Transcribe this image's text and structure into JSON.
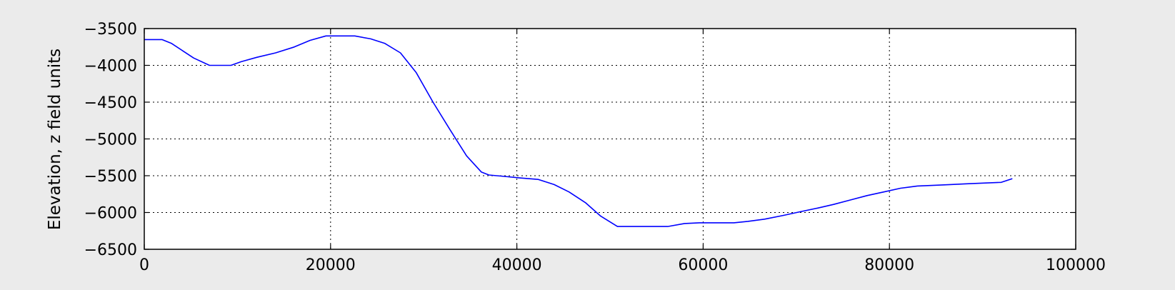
{
  "chart_data": {
    "type": "line",
    "title": "",
    "xlabel": "",
    "ylabel": "Elevation, z field units",
    "xlim": [
      0,
      100000
    ],
    "ylim": [
      -6500,
      -3500
    ],
    "xticks": [
      0,
      20000,
      40000,
      60000,
      80000,
      100000
    ],
    "xtick_labels": [
      "0",
      "20000",
      "40000",
      "60000",
      "80000",
      "100000"
    ],
    "yticks": [
      -3500,
      -4000,
      -4500,
      -5000,
      -5500,
      -6000,
      -6500
    ],
    "ytick_labels": [
      "−3500",
      "−4000",
      "−4500",
      "−5000",
      "−5500",
      "−6000",
      "−6500"
    ],
    "grid": true,
    "grid_style": "dotted",
    "legend": "none",
    "line_color": "#0000ff",
    "background": "#ebebeb",
    "series": [
      {
        "x": [
          0,
          1900,
          2900,
          4100,
          5300,
          7000,
          8100,
          9300,
          10400,
          12100,
          14100,
          16100,
          17800,
          19500,
          21000,
          22600,
          24300,
          25800,
          27500,
          29200,
          31000,
          32800,
          34600,
          36200,
          37000,
          38700,
          40300,
          42300,
          44000,
          45600,
          47400,
          49000,
          50800,
          52500,
          54200,
          56200,
          58000,
          59600,
          61400,
          63300,
          64800,
          66600,
          68600,
          70400,
          72300,
          74000,
          75800,
          77600,
          79400,
          81200,
          83000,
          84800,
          86500,
          88300,
          90100,
          92000,
          93200
        ],
        "y": [
          -3650,
          -3650,
          -3700,
          -3800,
          -3900,
          -4000,
          -4000,
          -4000,
          -3950,
          -3890,
          -3830,
          -3750,
          -3660,
          -3600,
          -3600,
          -3600,
          -3640,
          -3700,
          -3830,
          -4100,
          -4500,
          -4870,
          -5230,
          -5450,
          -5490,
          -5510,
          -5530,
          -5550,
          -5620,
          -5720,
          -5870,
          -6050,
          -6190,
          -6190,
          -6190,
          -6190,
          -6150,
          -6140,
          -6140,
          -6140,
          -6120,
          -6090,
          -6040,
          -5990,
          -5940,
          -5890,
          -5830,
          -5770,
          -5720,
          -5670,
          -5640,
          -5630,
          -5620,
          -5610,
          -5600,
          -5590,
          -5540
        ]
      }
    ]
  }
}
